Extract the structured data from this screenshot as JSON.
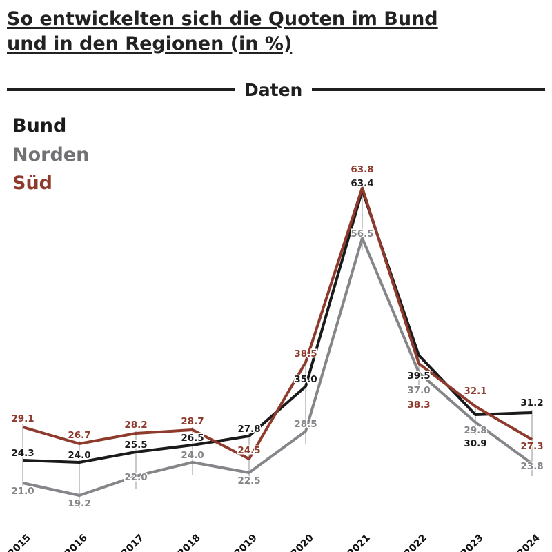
{
  "title": {
    "line1": "So entwickelten sich die Quoten im Bund",
    "line2": "und in den Regionen (in %)"
  },
  "divider": {
    "label": "Daten"
  },
  "legend": [
    {
      "label": "Bund",
      "color": "#1a1a1a"
    },
    {
      "label": "Norden",
      "color": "#717174"
    },
    {
      "label": "Süd",
      "color": "#8e3a2c"
    }
  ],
  "chart_data": {
    "type": "line",
    "x": [
      "2015",
      "2016",
      "2017",
      "2018",
      "2019",
      "2020",
      "2021",
      "2022",
      "2023",
      "2024"
    ],
    "series": [
      {
        "name": "Bund",
        "color": "#1a1a1a",
        "values": [
          24.3,
          24.0,
          25.5,
          26.5,
          27.8,
          35.0,
          63.4,
          39.5,
          30.9,
          31.2
        ]
      },
      {
        "name": "Norden",
        "color": "#85858a",
        "values": [
          21.0,
          19.2,
          22.0,
          24.0,
          22.5,
          28.5,
          56.5,
          37.0,
          29.8,
          23.8
        ]
      },
      {
        "name": "Süd",
        "color": "#8e3a2c",
        "values": [
          29.1,
          26.7,
          28.2,
          28.7,
          24.5,
          38.5,
          63.8,
          38.3,
          32.1,
          27.3
        ]
      }
    ],
    "ylim": [
      17,
      66
    ],
    "grid": false,
    "point_labels": "value with one decimal at every point",
    "legend_position": "top-left",
    "xtick_rotation": -45
  }
}
